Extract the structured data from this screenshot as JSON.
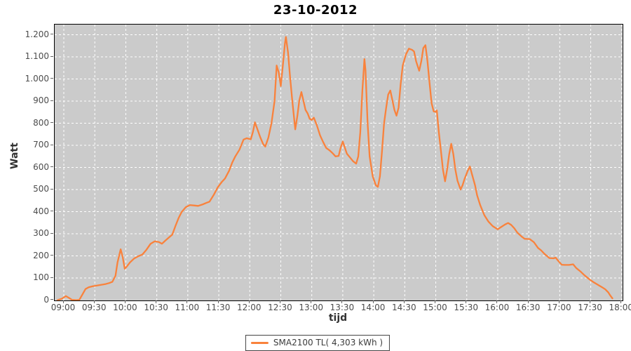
{
  "chart_data": {
    "type": "line",
    "title": "23-10-2012",
    "xlabel": "tijd",
    "ylabel": "Watt",
    "x_tick_labels": [
      "09:00",
      "09:30",
      "10:00",
      "10:30",
      "11:00",
      "11:30",
      "12:00",
      "12:30",
      "13:00",
      "13:30",
      "14:00",
      "14:30",
      "15:00",
      "15:30",
      "16:00",
      "16:30",
      "17:00",
      "17:30",
      "18:00"
    ],
    "y_tick_labels": [
      "0",
      "100",
      "200",
      "300",
      "400",
      "500",
      "600",
      "700",
      "800",
      "900",
      "1.000",
      "1.100",
      "1.200"
    ],
    "ylim": [
      0,
      1200
    ],
    "x_axis_start": "09:00",
    "x_axis_end": "18:00",
    "x_unit": "minutes after 09:00",
    "grid": "white dashed gridlines on gray plot background",
    "legend_position": "bottom-center",
    "series": [
      {
        "name": "SMA2100 TL( 4,303 kWh )",
        "color": "#f9823c",
        "points_t_min_watt": [
          [
            -6,
            0
          ],
          [
            -2,
            6
          ],
          [
            2,
            18
          ],
          [
            5,
            10
          ],
          [
            8,
            1
          ],
          [
            12,
            0
          ],
          [
            15,
            1
          ],
          [
            18,
            25
          ],
          [
            21,
            50
          ],
          [
            24,
            58
          ],
          [
            28,
            63
          ],
          [
            32,
            66
          ],
          [
            36,
            69
          ],
          [
            40,
            72
          ],
          [
            44,
            77
          ],
          [
            47,
            83
          ],
          [
            50,
            110
          ],
          [
            52,
            170
          ],
          [
            55,
            230
          ],
          [
            57,
            195
          ],
          [
            59,
            142
          ],
          [
            61,
            152
          ],
          [
            64,
            170
          ],
          [
            68,
            188
          ],
          [
            72,
            198
          ],
          [
            76,
            206
          ],
          [
            80,
            228
          ],
          [
            84,
            255
          ],
          [
            88,
            266
          ],
          [
            92,
            263
          ],
          [
            95,
            255
          ],
          [
            98,
            268
          ],
          [
            101,
            280
          ],
          [
            105,
            296
          ],
          [
            108,
            335
          ],
          [
            111,
            370
          ],
          [
            114,
            398
          ],
          [
            118,
            420
          ],
          [
            122,
            430
          ],
          [
            126,
            428
          ],
          [
            130,
            426
          ],
          [
            134,
            432
          ],
          [
            138,
            440
          ],
          [
            141,
            445
          ],
          [
            145,
            475
          ],
          [
            149,
            510
          ],
          [
            153,
            535
          ],
          [
            156,
            550
          ],
          [
            160,
            585
          ],
          [
            163,
            622
          ],
          [
            166,
            650
          ],
          [
            170,
            680
          ],
          [
            174,
            726
          ],
          [
            177,
            732
          ],
          [
            181,
            727
          ],
          [
            183,
            760
          ],
          [
            185,
            804
          ],
          [
            188,
            765
          ],
          [
            190,
            738
          ],
          [
            193,
            705
          ],
          [
            195,
            694
          ],
          [
            198,
            735
          ],
          [
            201,
            800
          ],
          [
            204,
            900
          ],
          [
            206,
            1061
          ],
          [
            208,
            1030
          ],
          [
            210,
            968
          ],
          [
            212,
            1060
          ],
          [
            214,
            1160
          ],
          [
            215,
            1190
          ],
          [
            217,
            1120
          ],
          [
            219,
            1010
          ],
          [
            221,
            908
          ],
          [
            224,
            772
          ],
          [
            226,
            830
          ],
          [
            228,
            905
          ],
          [
            230,
            941
          ],
          [
            232,
            900
          ],
          [
            234,
            860
          ],
          [
            236,
            844
          ],
          [
            238,
            820
          ],
          [
            240,
            815
          ],
          [
            242,
            825
          ],
          [
            245,
            790
          ],
          [
            248,
            745
          ],
          [
            251,
            715
          ],
          [
            254,
            688
          ],
          [
            257,
            678
          ],
          [
            260,
            665
          ],
          [
            263,
            650
          ],
          [
            266,
            652
          ],
          [
            268,
            690
          ],
          [
            270,
            717
          ],
          [
            272,
            690
          ],
          [
            274,
            662
          ],
          [
            277,
            645
          ],
          [
            280,
            628
          ],
          [
            283,
            617
          ],
          [
            285,
            650
          ],
          [
            287,
            760
          ],
          [
            289,
            950
          ],
          [
            291,
            1090
          ],
          [
            292,
            1040
          ],
          [
            294,
            802
          ],
          [
            296,
            650
          ],
          [
            299,
            560
          ],
          [
            302,
            520
          ],
          [
            304,
            512
          ],
          [
            306,
            560
          ],
          [
            308,
            675
          ],
          [
            310,
            800
          ],
          [
            312,
            870
          ],
          [
            314,
            930
          ],
          [
            316,
            948
          ],
          [
            318,
            905
          ],
          [
            320,
            860
          ],
          [
            322,
            834
          ],
          [
            324,
            870
          ],
          [
            326,
            975
          ],
          [
            328,
            1060
          ],
          [
            331,
            1110
          ],
          [
            334,
            1137
          ],
          [
            337,
            1132
          ],
          [
            339,
            1124
          ],
          [
            341,
            1080
          ],
          [
            344,
            1037
          ],
          [
            346,
            1080
          ],
          [
            348,
            1140
          ],
          [
            350,
            1153
          ],
          [
            352,
            1080
          ],
          [
            354,
            981
          ],
          [
            356,
            890
          ],
          [
            358,
            853
          ],
          [
            360,
            851
          ],
          [
            361,
            858
          ],
          [
            363,
            760
          ],
          [
            365,
            675
          ],
          [
            367,
            590
          ],
          [
            369,
            537
          ],
          [
            371,
            590
          ],
          [
            373,
            660
          ],
          [
            375,
            707
          ],
          [
            377,
            660
          ],
          [
            379,
            590
          ],
          [
            381,
            540
          ],
          [
            384,
            500
          ],
          [
            386,
            520
          ],
          [
            388,
            550
          ],
          [
            391,
            585
          ],
          [
            393,
            604
          ],
          [
            395,
            570
          ],
          [
            398,
            520
          ],
          [
            400,
            474
          ],
          [
            403,
            430
          ],
          [
            407,
            384
          ],
          [
            411,
            355
          ],
          [
            415,
            335
          ],
          [
            420,
            320
          ],
          [
            423,
            330
          ],
          [
            427,
            342
          ],
          [
            430,
            349
          ],
          [
            433,
            340
          ],
          [
            436,
            325
          ],
          [
            439,
            305
          ],
          [
            443,
            288
          ],
          [
            446,
            277
          ],
          [
            451,
            276
          ],
          [
            455,
            262
          ],
          [
            459,
            236
          ],
          [
            462,
            225
          ],
          [
            465,
            210
          ],
          [
            468,
            198
          ],
          [
            470,
            190
          ],
          [
            474,
            189
          ],
          [
            476,
            192
          ],
          [
            479,
            175
          ],
          [
            482,
            160
          ],
          [
            485,
            159
          ],
          [
            489,
            159
          ],
          [
            493,
            162
          ],
          [
            496,
            145
          ],
          [
            500,
            130
          ],
          [
            504,
            112
          ],
          [
            509,
            93
          ],
          [
            513,
            80
          ],
          [
            517,
            69
          ],
          [
            521,
            58
          ],
          [
            524,
            49
          ],
          [
            527,
            35
          ],
          [
            529,
            20
          ],
          [
            531,
            8
          ]
        ]
      }
    ]
  },
  "legend": {
    "label": "SMA2100 TL( 4,303 kWh )"
  },
  "colors": {
    "series_line": "#f9823c",
    "plot_background": "#cbcbcb",
    "gridline": "#ffffff",
    "plot_outline": "#000000",
    "tick_label_text": "#4d4d4d",
    "axis_label_text": "#333333",
    "page_background": "#ffffff"
  }
}
